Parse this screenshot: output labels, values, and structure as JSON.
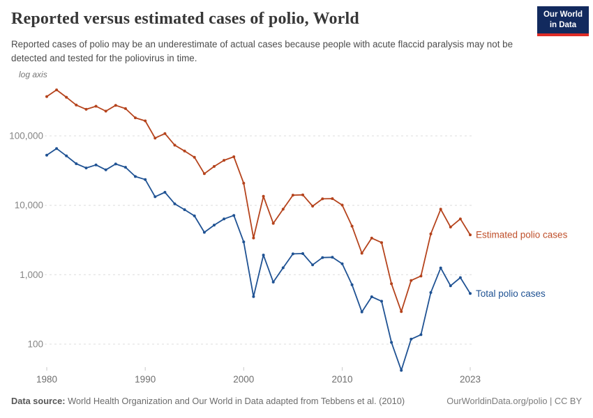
{
  "logo": {
    "line1": "Our World",
    "line2": "in Data",
    "bg_color": "#122A5E",
    "accent_color": "#DE2C26"
  },
  "chart_data": {
    "type": "line",
    "title": "Reported versus estimated cases of polio, World",
    "subtitle": "Reported cases of polio may be an underestimate of actual cases because people with acute flaccid paralysis may not be detected and tested for the poliovirus in time.",
    "y_scale": "log",
    "log_axis_label": "log axis",
    "grid": "dashed horizontal gridlines",
    "legend": "end-of-line labels",
    "ylim": [
      40,
      470000
    ],
    "grid_color": "#dcdcdc",
    "y_tick_text_color": "#858585",
    "x_tick_text_color": "#6e6e6e",
    "x_tick_mark_color": "#c9c9c9",
    "x": [
      1980,
      1981,
      1982,
      1983,
      1984,
      1985,
      1986,
      1987,
      1988,
      1989,
      1990,
      1991,
      1992,
      1993,
      1994,
      1995,
      1996,
      1997,
      1998,
      1999,
      2000,
      2001,
      2002,
      2003,
      2004,
      2005,
      2006,
      2007,
      2008,
      2009,
      2010,
      2011,
      2012,
      2013,
      2014,
      2015,
      2016,
      2017,
      2018,
      2019,
      2020,
      2021,
      2022,
      2023
    ],
    "x_ticks": [
      1980,
      1990,
      2000,
      2010,
      2023
    ],
    "y_ticks": [
      {
        "value": 100000,
        "label": "100,000"
      },
      {
        "value": 10000,
        "label": "10,000"
      },
      {
        "value": 1000,
        "label": "1,000"
      },
      {
        "value": 100,
        "label": "100"
      }
    ],
    "series": [
      {
        "id": "estimated",
        "name": "Estimated polio cases",
        "color": "#B5431C",
        "label_color": "#BF4F2A",
        "values": [
          367864,
          459893,
          359856,
          277718,
          241262,
          267050,
          226933,
          275212,
          246757,
          181769,
          164388,
          92862,
          107842,
          73409,
          60445,
          49245,
          28518,
          36295,
          44443,
          49987,
          20797,
          3381,
          13454,
          5488,
          8806,
          13986,
          14119,
          9709,
          12376,
          12481,
          10066,
          5012,
          2037,
          3367,
          2905,
          742,
          294,
          826,
          959,
          3878,
          8771,
          4858,
          6363,
          3752
        ]
      },
      {
        "id": "total",
        "name": "Total polio cases",
        "color": "#1F5293",
        "label_color": "#1F5293",
        "values": [
          52552,
          65699,
          51408,
          39674,
          34466,
          38150,
          32419,
          39316,
          35251,
          25967,
          23484,
          13266,
          15406,
          10487,
          8635,
          7035,
          4074,
          5185,
          6349,
          7141,
          2971,
          483,
          1922,
          784,
          1258,
          1998,
          2017,
          1387,
          1768,
          1783,
          1438,
          716,
          291,
          481,
          415,
          106,
          42,
          118,
          137,
          554,
          1253,
          694,
          909,
          536
        ]
      }
    ]
  },
  "footer": {
    "source_label": "Data source:",
    "source_text": " World Health Organization and Our World in Data adapted from Tebbens et al. (2010)",
    "credit": "OurWorldinData.org/polio | CC BY"
  }
}
